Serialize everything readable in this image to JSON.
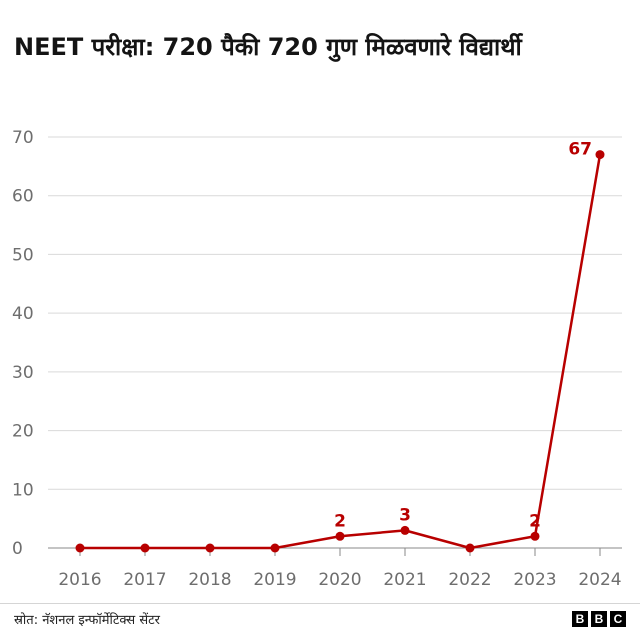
{
  "title": "NEET परीक्षा: 720 पैकी 720 गुण मिळवणारे विद्यार्थी",
  "source": "स्रोत: नॅशनल इन्फॉर्मेटिक्स सेंटर",
  "logo": {
    "letters": [
      "B",
      "B",
      "C"
    ]
  },
  "colors": {
    "series": "#b80000",
    "grid": "#d9d9d9",
    "axis_text": "#6e6e6e"
  },
  "chart_data": {
    "type": "line",
    "title": "NEET परीक्षा: 720 पैकी 720 गुण मिळवणारे विद्यार्थी",
    "xlabel": "",
    "ylabel": "",
    "x": [
      "2016",
      "2017",
      "2018",
      "2019",
      "2020",
      "2021",
      "2022",
      "2023",
      "2024"
    ],
    "values": [
      0,
      0,
      0,
      0,
      2,
      3,
      0,
      2,
      67
    ],
    "data_labels": [
      "",
      "",
      "",
      "",
      "2",
      "3",
      "",
      "2",
      "67"
    ],
    "ylim": [
      0,
      70
    ],
    "yticks": [
      "0",
      "10",
      "20",
      "30",
      "40",
      "50",
      "60",
      "70"
    ],
    "grid": true,
    "legend": "none"
  }
}
